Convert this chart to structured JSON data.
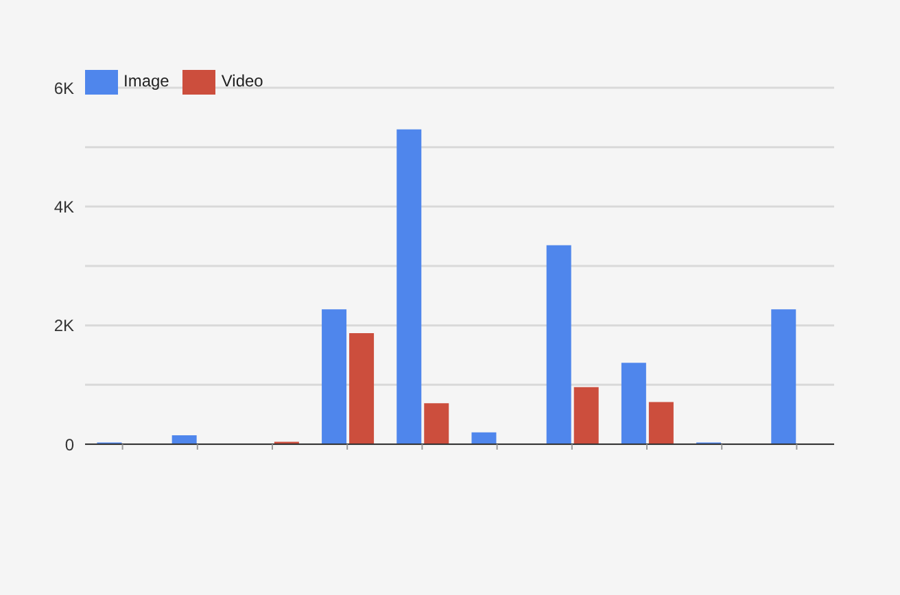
{
  "chart_data": {
    "type": "bar",
    "categories": [
      null,
      null,
      null,
      null,
      null,
      null,
      null,
      null,
      null,
      null
    ],
    "series": [
      {
        "name": "Image",
        "color": "#4f86ec",
        "values": [
          30,
          150,
          0,
          2270,
          5300,
          200,
          3350,
          1370,
          30,
          2270
        ]
      },
      {
        "name": "Video",
        "color": "#cc4e3d",
        "values": [
          0,
          0,
          40,
          1870,
          690,
          0,
          960,
          710,
          0,
          0
        ]
      }
    ],
    "ylim": [
      0,
      6000
    ],
    "yticks": [
      0,
      {
        "value": 1000,
        "label": null
      },
      {
        "value": 2000,
        "label": "2K"
      },
      {
        "value": 3000,
        "label": null
      },
      {
        "value": 4000,
        "label": "4K"
      },
      {
        "value": 5000,
        "label": null
      },
      {
        "value": 6000,
        "label": "6K"
      }
    ],
    "grid": "y",
    "legend": "top left"
  }
}
